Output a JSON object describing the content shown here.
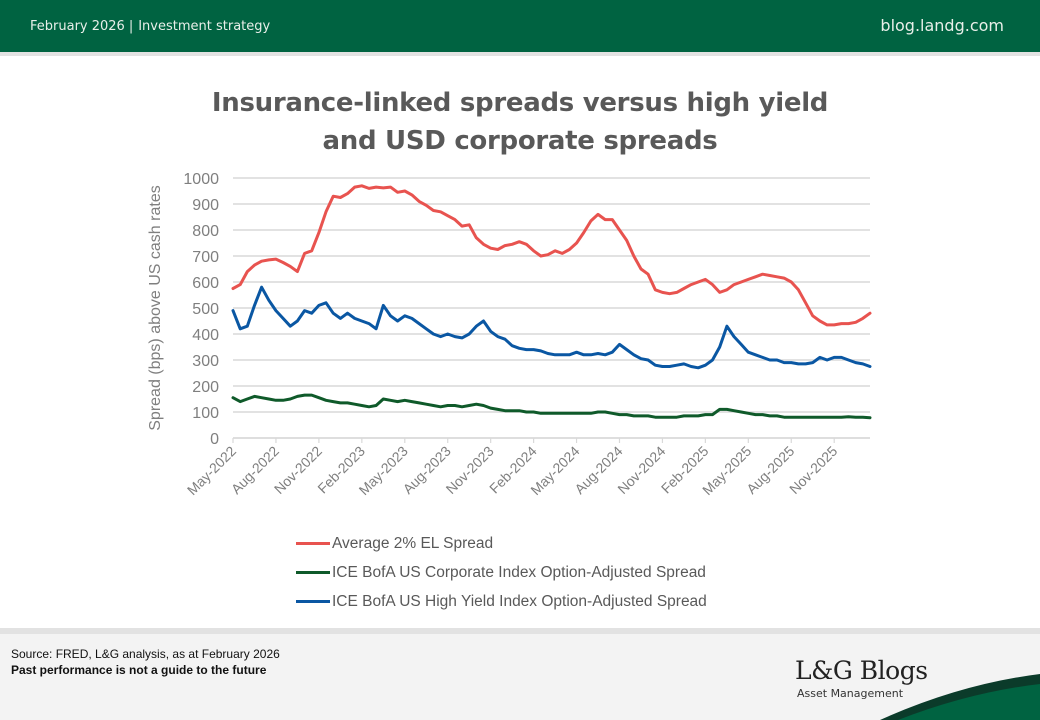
{
  "header": {
    "date": "February 2026",
    "separator": "|",
    "category": "Investment strategy",
    "site": "blog.landg.com"
  },
  "title": {
    "line1": "Insurance-linked spreads versus high yield",
    "line2": "and USD corporate spreads"
  },
  "footer": {
    "source": "Source: FRED, L&G analysis, as at February 2026",
    "disclaimer": "Past performance is not a guide to the future",
    "brand": "L&G Blogs",
    "brand_sub": "Asset Management"
  },
  "colors": {
    "brand_green": "#006341",
    "dark_green": "#0b3b2a",
    "el_spread": "#e8534f",
    "corporate": "#0f5a2a",
    "high_yield": "#0a57a3"
  },
  "chart_data": {
    "type": "line",
    "title": "Insurance-linked spreads versus high yield and USD corporate spreads",
    "xlabel": "",
    "ylabel": "Spread (bps) above US cash rates",
    "ylim": [
      0,
      1000
    ],
    "yticks": [
      0,
      100,
      200,
      300,
      400,
      500,
      600,
      700,
      800,
      900,
      1000
    ],
    "xlim": [
      "2022-05",
      "2026-01"
    ],
    "x_tick_labels": [
      "May-2022",
      "Aug-2022",
      "Nov-2022",
      "Feb-2023",
      "May-2023",
      "Aug-2023",
      "Nov-2023",
      "Feb-2024",
      "May-2024",
      "Aug-2024",
      "Nov-2024",
      "Feb-2025",
      "May-2025",
      "Aug-2025",
      "Nov-2025"
    ],
    "grid": true,
    "legend_position": "bottom",
    "x": [
      0,
      0.5,
      1,
      1.5,
      2,
      2.5,
      3,
      3.5,
      4,
      4.5,
      5,
      5.5,
      6,
      6.5,
      7,
      7.5,
      8,
      8.5,
      9,
      9.5,
      10,
      10.5,
      11,
      11.5,
      12,
      12.5,
      13,
      13.5,
      14,
      14.5,
      15,
      15.5,
      16,
      16.5,
      17,
      17.5,
      18,
      18.5,
      19,
      19.5,
      20,
      20.5,
      21,
      21.5,
      22,
      22.5,
      23,
      23.5,
      24,
      24.5,
      25,
      25.5,
      26,
      26.5,
      27,
      27.5,
      28,
      28.5,
      29,
      29.5,
      30,
      30.5,
      31,
      31.5,
      32,
      32.5,
      33,
      33.5,
      34,
      34.5,
      35,
      35.5,
      36,
      36.5,
      37,
      37.5,
      38,
      38.5,
      39,
      39.5,
      40,
      40.5,
      41,
      41.5,
      42,
      42.5,
      43,
      43.5,
      44,
      44.5
    ],
    "x_unit": "months since May-2022",
    "series": [
      {
        "name": "Average 2% EL Spread",
        "color": "#e8534f",
        "values": [
          575,
          590,
          640,
          665,
          680,
          685,
          688,
          675,
          660,
          640,
          710,
          720,
          790,
          870,
          930,
          925,
          940,
          965,
          970,
          960,
          965,
          962,
          965,
          945,
          950,
          935,
          910,
          895,
          875,
          870,
          855,
          840,
          815,
          820,
          770,
          745,
          730,
          725,
          740,
          745,
          755,
          745,
          720,
          700,
          705,
          720,
          710,
          725,
          750,
          790,
          835,
          860,
          840,
          840,
          800,
          760,
          700,
          650,
          630,
          570,
          560,
          555,
          560,
          575,
          590,
          600,
          610,
          590,
          560,
          570,
          590,
          600,
          610,
          620,
          630,
          625,
          620,
          615,
          600,
          570,
          520,
          470,
          450,
          435,
          435,
          440,
          440,
          445,
          460,
          480
        ]
      },
      {
        "name": "ICE BofA US Corporate Index Option-Adjusted Spread",
        "color": "#0f5a2a",
        "values": [
          155,
          140,
          150,
          160,
          155,
          150,
          145,
          145,
          150,
          160,
          165,
          165,
          155,
          145,
          140,
          135,
          135,
          130,
          125,
          120,
          125,
          150,
          145,
          140,
          145,
          140,
          135,
          130,
          125,
          120,
          125,
          125,
          120,
          125,
          130,
          125,
          115,
          110,
          105,
          105,
          105,
          100,
          100,
          95,
          95,
          95,
          95,
          95,
          95,
          95,
          95,
          100,
          100,
          95,
          90,
          90,
          85,
          85,
          85,
          80,
          80,
          80,
          80,
          85,
          85,
          85,
          90,
          90,
          110,
          110,
          105,
          100,
          95,
          90,
          90,
          85,
          85,
          80,
          80,
          80,
          80,
          80,
          80,
          80,
          80,
          80,
          82,
          80,
          80,
          78
        ]
      },
      {
        "name": "ICE BofA US High Yield Index Option-Adjusted Spread",
        "color": "#0a57a3",
        "values": [
          490,
          420,
          430,
          510,
          580,
          530,
          490,
          460,
          430,
          450,
          490,
          480,
          510,
          520,
          480,
          460,
          480,
          460,
          450,
          440,
          420,
          510,
          470,
          450,
          470,
          460,
          440,
          420,
          400,
          390,
          400,
          390,
          385,
          400,
          430,
          450,
          410,
          390,
          380,
          355,
          345,
          340,
          340,
          335,
          325,
          320,
          320,
          320,
          330,
          320,
          320,
          325,
          320,
          330,
          360,
          340,
          320,
          305,
          300,
          280,
          275,
          275,
          280,
          285,
          275,
          270,
          280,
          300,
          350,
          430,
          390,
          360,
          330,
          320,
          310,
          300,
          300,
          290,
          290,
          285,
          285,
          290,
          310,
          300,
          310,
          310,
          300,
          290,
          285,
          275
        ]
      }
    ]
  }
}
